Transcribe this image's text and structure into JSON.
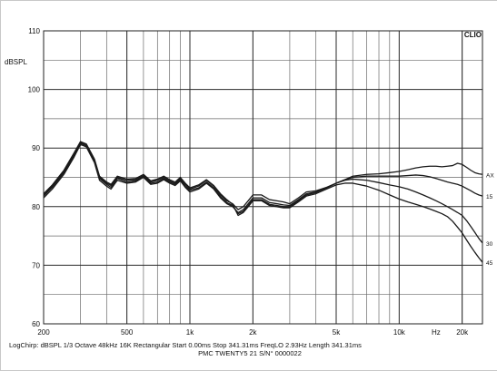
{
  "chart_data": {
    "type": "line",
    "logo": "CLIO",
    "ylabel": "dBSPL",
    "xlabel": "Hz",
    "xscale": "log",
    "xlim": [
      200,
      25000
    ],
    "ylim": [
      60,
      110
    ],
    "y_ticks": [
      {
        "value": 110,
        "label": "110"
      },
      {
        "value": 100,
        "label": "100"
      },
      {
        "value": 90,
        "label": "90"
      },
      {
        "value": 80,
        "label": "80"
      },
      {
        "value": 70,
        "label": "70"
      },
      {
        "value": 60,
        "label": "60"
      }
    ],
    "x_ticks": [
      {
        "value": 200,
        "label": "200"
      },
      {
        "value": 500,
        "label": "500"
      },
      {
        "value": 1000,
        "label": "1k"
      },
      {
        "value": 2000,
        "label": "2k"
      },
      {
        "value": 5000,
        "label": "5k"
      },
      {
        "value": 10000,
        "label": "10k"
      },
      {
        "value": 20000,
        "label": "20k"
      }
    ],
    "footer_line1": "LogChirp: dBSPL  1/3 Octave  48kHz  16K  Rectangular  Start 0.00ms   Stop 341.31ms   FreqLO 2.93Hz   Length 341.31ms",
    "footer_line2": "PMC TWENTY5 21 S/N° 0000022",
    "series": [
      {
        "name": "AX",
        "color": "#1a1a1a",
        "points": [
          [
            200,
            82
          ],
          [
            220,
            83.5
          ],
          [
            250,
            86
          ],
          [
            280,
            89
          ],
          [
            300,
            91
          ],
          [
            320,
            90.6
          ],
          [
            350,
            88
          ],
          [
            370,
            85
          ],
          [
            400,
            84
          ],
          [
            420,
            83.6
          ],
          [
            450,
            85
          ],
          [
            500,
            84.5
          ],
          [
            550,
            84.6
          ],
          [
            600,
            85.3
          ],
          [
            650,
            84.2
          ],
          [
            700,
            84.5
          ],
          [
            750,
            85
          ],
          [
            800,
            84.4
          ],
          [
            850,
            84
          ],
          [
            900,
            84.8
          ],
          [
            950,
            83.8
          ],
          [
            1000,
            83
          ],
          [
            1100,
            83.5
          ],
          [
            1200,
            84.5
          ],
          [
            1300,
            83.5
          ],
          [
            1400,
            82
          ],
          [
            1500,
            81
          ],
          [
            1600,
            80.5
          ],
          [
            1700,
            79.5
          ],
          [
            1800,
            80
          ],
          [
            1900,
            81
          ],
          [
            2000,
            82
          ],
          [
            2200,
            82
          ],
          [
            2400,
            81.2
          ],
          [
            2600,
            81
          ],
          [
            2800,
            80.8
          ],
          [
            3000,
            80.5
          ],
          [
            3300,
            81.5
          ],
          [
            3600,
            82.5
          ],
          [
            4000,
            82.7
          ],
          [
            4500,
            83.3
          ],
          [
            5000,
            84
          ],
          [
            5500,
            84.6
          ],
          [
            6000,
            85.2
          ],
          [
            7000,
            85.5
          ],
          [
            8000,
            85.6
          ],
          [
            9000,
            85.8
          ],
          [
            10000,
            86
          ],
          [
            11000,
            86.3
          ],
          [
            12000,
            86.6
          ],
          [
            13000,
            86.8
          ],
          [
            14000,
            86.9
          ],
          [
            15000,
            86.9
          ],
          [
            16000,
            86.8
          ],
          [
            17000,
            86.9
          ],
          [
            18000,
            87
          ],
          [
            19000,
            87.4
          ],
          [
            20000,
            87.2
          ],
          [
            21000,
            86.7
          ],
          [
            22000,
            86.2
          ],
          [
            23000,
            85.8
          ],
          [
            24000,
            85.6
          ],
          [
            25000,
            85.5
          ]
        ]
      },
      {
        "name": "15",
        "color": "#1a1a1a",
        "points": [
          [
            200,
            81.5
          ],
          [
            220,
            83
          ],
          [
            250,
            85.5
          ],
          [
            280,
            88.5
          ],
          [
            300,
            90.6
          ],
          [
            320,
            90.2
          ],
          [
            350,
            87.5
          ],
          [
            370,
            84.5
          ],
          [
            400,
            83.5
          ],
          [
            420,
            83
          ],
          [
            450,
            84.5
          ],
          [
            500,
            84
          ],
          [
            550,
            84.2
          ],
          [
            600,
            85
          ],
          [
            650,
            83.8
          ],
          [
            700,
            84
          ],
          [
            750,
            84.6
          ],
          [
            800,
            84
          ],
          [
            850,
            83.6
          ],
          [
            900,
            84.4
          ],
          [
            950,
            83.3
          ],
          [
            1000,
            82.5
          ],
          [
            1100,
            83
          ],
          [
            1200,
            84
          ],
          [
            1300,
            83
          ],
          [
            1400,
            81.5
          ],
          [
            1500,
            80.5
          ],
          [
            1600,
            80
          ],
          [
            1700,
            79
          ],
          [
            1800,
            79.5
          ],
          [
            1900,
            80.5
          ],
          [
            2000,
            81.5
          ],
          [
            2200,
            81.5
          ],
          [
            2400,
            80.7
          ],
          [
            2600,
            80.5
          ],
          [
            2800,
            80.3
          ],
          [
            3000,
            80.2
          ],
          [
            3300,
            81.2
          ],
          [
            3600,
            82.2
          ],
          [
            4000,
            82.5
          ],
          [
            4500,
            83.2
          ],
          [
            5000,
            84
          ],
          [
            5500,
            84.6
          ],
          [
            6000,
            85
          ],
          [
            7000,
            85.2
          ],
          [
            8000,
            85.2
          ],
          [
            9000,
            85.2
          ],
          [
            10000,
            85.2
          ],
          [
            11000,
            85.3
          ],
          [
            12000,
            85.4
          ],
          [
            13000,
            85.3
          ],
          [
            14000,
            85.1
          ],
          [
            15000,
            84.8
          ],
          [
            16000,
            84.5
          ],
          [
            17000,
            84.2
          ],
          [
            18000,
            84
          ],
          [
            19000,
            83.8
          ],
          [
            20000,
            83.5
          ],
          [
            21000,
            83.1
          ],
          [
            22000,
            82.7
          ],
          [
            23000,
            82.3
          ],
          [
            24000,
            82
          ],
          [
            25000,
            81.8
          ]
        ]
      },
      {
        "name": "30",
        "color": "#1a1a1a",
        "points": [
          [
            200,
            81.8
          ],
          [
            220,
            83.3
          ],
          [
            250,
            85.8
          ],
          [
            280,
            88.8
          ],
          [
            300,
            90.8
          ],
          [
            320,
            90.4
          ],
          [
            350,
            87.8
          ],
          [
            370,
            84.8
          ],
          [
            400,
            83.8
          ],
          [
            420,
            83.3
          ],
          [
            450,
            84.8
          ],
          [
            500,
            84.2
          ],
          [
            550,
            84.4
          ],
          [
            600,
            85.1
          ],
          [
            650,
            84
          ],
          [
            700,
            84.2
          ],
          [
            750,
            84.8
          ],
          [
            800,
            84.2
          ],
          [
            850,
            83.8
          ],
          [
            900,
            84.6
          ],
          [
            950,
            83.5
          ],
          [
            1000,
            82.8
          ],
          [
            1100,
            83.2
          ],
          [
            1200,
            84.2
          ],
          [
            1300,
            83.2
          ],
          [
            1400,
            81.7
          ],
          [
            1500,
            80.7
          ],
          [
            1600,
            80.2
          ],
          [
            1700,
            78.8
          ],
          [
            1800,
            79.2
          ],
          [
            1900,
            80.2
          ],
          [
            2000,
            81.2
          ],
          [
            2200,
            81.2
          ],
          [
            2400,
            80.4
          ],
          [
            2600,
            80.2
          ],
          [
            2800,
            80
          ],
          [
            3000,
            80
          ],
          [
            3300,
            81
          ],
          [
            3600,
            82
          ],
          [
            4000,
            82.4
          ],
          [
            4500,
            83.2
          ],
          [
            5000,
            84
          ],
          [
            5500,
            84.5
          ],
          [
            6000,
            84.7
          ],
          [
            7000,
            84.5
          ],
          [
            8000,
            84.1
          ],
          [
            9000,
            83.7
          ],
          [
            10000,
            83.4
          ],
          [
            11000,
            83
          ],
          [
            12000,
            82.5
          ],
          [
            13000,
            82
          ],
          [
            14000,
            81.5
          ],
          [
            15000,
            81
          ],
          [
            16000,
            80.5
          ],
          [
            17000,
            80
          ],
          [
            18000,
            79.5
          ],
          [
            19000,
            79
          ],
          [
            20000,
            78.5
          ],
          [
            21000,
            77.6
          ],
          [
            22000,
            76.6
          ],
          [
            23000,
            75.6
          ],
          [
            24000,
            74.6
          ],
          [
            25000,
            73.8
          ]
        ]
      },
      {
        "name": "45",
        "color": "#1a1a1a",
        "points": [
          [
            200,
            82.2
          ],
          [
            220,
            83.7
          ],
          [
            250,
            86.2
          ],
          [
            280,
            89.2
          ],
          [
            300,
            91.1
          ],
          [
            320,
            90.7
          ],
          [
            350,
            88.1
          ],
          [
            370,
            85.2
          ],
          [
            400,
            84.2
          ],
          [
            420,
            83.8
          ],
          [
            450,
            85.2
          ],
          [
            500,
            84.7
          ],
          [
            550,
            84.8
          ],
          [
            600,
            85.5
          ],
          [
            650,
            84.4
          ],
          [
            700,
            84.7
          ],
          [
            750,
            85.2
          ],
          [
            800,
            84.6
          ],
          [
            850,
            84.2
          ],
          [
            900,
            85
          ],
          [
            950,
            84
          ],
          [
            1000,
            83.2
          ],
          [
            1100,
            83.7
          ],
          [
            1200,
            84.6
          ],
          [
            1300,
            83.6
          ],
          [
            1400,
            82.2
          ],
          [
            1500,
            81.2
          ],
          [
            1600,
            80.4
          ],
          [
            1700,
            78.5
          ],
          [
            1800,
            79
          ],
          [
            1900,
            80
          ],
          [
            2000,
            81
          ],
          [
            2200,
            81
          ],
          [
            2400,
            80.2
          ],
          [
            2600,
            80
          ],
          [
            2800,
            79.8
          ],
          [
            3000,
            79.8
          ],
          [
            3300,
            80.8
          ],
          [
            3600,
            81.8
          ],
          [
            4000,
            82.2
          ],
          [
            4500,
            83
          ],
          [
            5000,
            83.7
          ],
          [
            5500,
            84
          ],
          [
            6000,
            84
          ],
          [
            7000,
            83.5
          ],
          [
            8000,
            82.8
          ],
          [
            9000,
            82
          ],
          [
            10000,
            81.3
          ],
          [
            11000,
            80.8
          ],
          [
            12000,
            80.4
          ],
          [
            13000,
            80
          ],
          [
            14000,
            79.6
          ],
          [
            15000,
            79.2
          ],
          [
            16000,
            78.8
          ],
          [
            17000,
            78.3
          ],
          [
            18000,
            77.5
          ],
          [
            19000,
            76.5
          ],
          [
            20000,
            75.5
          ],
          [
            21000,
            74.3
          ],
          [
            22000,
            73.2
          ],
          [
            23000,
            72.2
          ],
          [
            24000,
            71.3
          ],
          [
            25000,
            70.5
          ]
        ]
      }
    ]
  }
}
